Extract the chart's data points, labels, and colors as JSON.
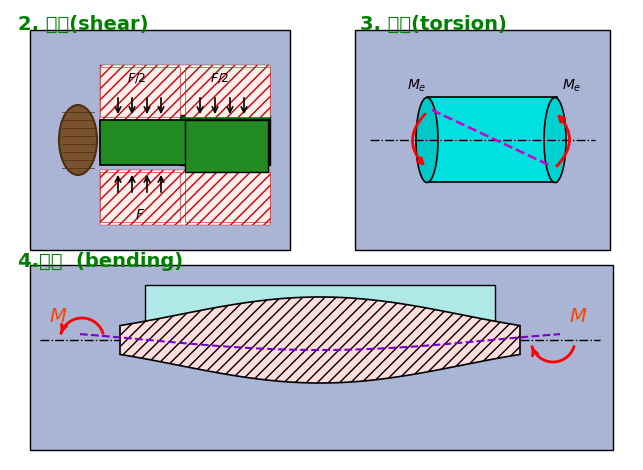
{
  "bg_color": "#ffffff",
  "title1": "2. 剪切(shear)",
  "title2": "3. 扭转(torsion)",
  "title3": "4.弯曲  (bending)",
  "title_color": "#008000",
  "title_fontsize": 14,
  "box1_bg": "#aab4d4",
  "box2_bg": "#aab4d4",
  "box3_bg": "#aab4d4",
  "hatch_color_red": "#ff0000",
  "green_color": "#008000",
  "cyan_color": "#00e5ff",
  "arrow_color": "#ff0000",
  "dashed_color": "#9900cc",
  "italic_label_color": "#000000",
  "M_color": "#ff4400"
}
